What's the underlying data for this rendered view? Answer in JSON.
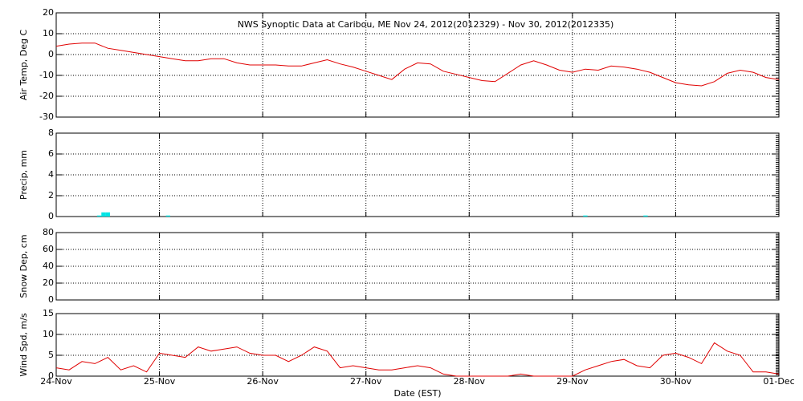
{
  "chart_data": [
    {
      "type": "line",
      "title": "NWS Synoptic Data at Caribou, ME   Nov 24, 2012(2012329) - Nov 30, 2012(2012335)",
      "ylabel": "Air Temp, Deg C",
      "ylim": [
        -30,
        20
      ],
      "yticks": [
        -30,
        -20,
        -10,
        0,
        10,
        20
      ],
      "grid": true,
      "color": "#e00000",
      "x": [
        0,
        3,
        6,
        9,
        12,
        15,
        18,
        21,
        24,
        27,
        30,
        33,
        36,
        39,
        42,
        45,
        48,
        51,
        54,
        57,
        60,
        63,
        66,
        69,
        72,
        75,
        78,
        81,
        84,
        87,
        90,
        93,
        96,
        99,
        102,
        105,
        108,
        111,
        114,
        117,
        120,
        123,
        126,
        129,
        132,
        135,
        138,
        141,
        144,
        147,
        150,
        153,
        156,
        159,
        162,
        165,
        168
      ],
      "values": [
        4,
        5,
        5.5,
        5.5,
        3,
        2,
        1,
        0,
        -1,
        -2,
        -3,
        -3,
        -2,
        -2,
        -4,
        -5,
        -5,
        -5,
        -5.5,
        -5.5,
        -4,
        -2.5,
        -4.5,
        -6,
        -8,
        -10,
        -12,
        -7,
        -4,
        -4.5,
        -8,
        -9.5,
        -11,
        -12.5,
        -13,
        -9,
        -5,
        -3,
        -5,
        -7.5,
        -8.5,
        -7,
        -7.5,
        -5.5,
        -6,
        -7,
        -8.5,
        -11,
        -13.5,
        -14.5,
        -15,
        -13,
        -9,
        -7.5,
        -8.5,
        -11,
        -12
      ]
    },
    {
      "type": "bar",
      "ylabel": "Precip, mm",
      "ylim": [
        0,
        8
      ],
      "yticks": [
        0,
        2,
        4,
        6,
        8
      ],
      "grid": true,
      "color": "#00e5e5",
      "x": [
        10,
        11,
        12,
        26,
        123,
        137
      ],
      "values": [
        0.1,
        0.4,
        0.4,
        0.1,
        0.1,
        0.1
      ]
    },
    {
      "type": "line",
      "ylabel": "Snow Dep, cm",
      "ylim": [
        0,
        80
      ],
      "yticks": [
        0,
        20,
        40,
        60,
        80
      ],
      "grid": true,
      "x": [],
      "values": []
    },
    {
      "type": "line",
      "ylabel": "Wind Spd, m/s",
      "xlabel": "Date (EST)",
      "ylim": [
        0,
        15
      ],
      "yticks": [
        0,
        5,
        10,
        15
      ],
      "grid": true,
      "color": "#e00000",
      "xlim": [
        0,
        168
      ],
      "xticks": [
        {
          "value": 0,
          "label": "24-Nov"
        },
        {
          "value": 24,
          "label": "25-Nov"
        },
        {
          "value": 48,
          "label": "26-Nov"
        },
        {
          "value": 72,
          "label": "27-Nov"
        },
        {
          "value": 96,
          "label": "28-Nov"
        },
        {
          "value": 120,
          "label": "29-Nov"
        },
        {
          "value": 144,
          "label": "30-Nov"
        },
        {
          "value": 168,
          "label": "01-Dec"
        }
      ],
      "x": [
        0,
        3,
        6,
        9,
        12,
        15,
        18,
        21,
        24,
        27,
        30,
        33,
        36,
        39,
        42,
        45,
        48,
        51,
        54,
        57,
        60,
        63,
        66,
        69,
        72,
        75,
        78,
        81,
        84,
        87,
        90,
        93,
        96,
        99,
        102,
        105,
        108,
        111,
        114,
        117,
        120,
        123,
        126,
        129,
        132,
        135,
        138,
        141,
        144,
        147,
        150,
        153,
        156,
        159,
        162,
        165,
        168
      ],
      "values": [
        2,
        1.5,
        3.5,
        3,
        4.5,
        1.5,
        2.5,
        1,
        5.5,
        5,
        4.5,
        7,
        6,
        6.5,
        7,
        5.5,
        5,
        5,
        3.5,
        5,
        7,
        6,
        2,
        2.5,
        2,
        1.5,
        1.5,
        2,
        2.5,
        2,
        0.5,
        0,
        0,
        0,
        0,
        0,
        0.5,
        0,
        0,
        0,
        0,
        1.5,
        2.5,
        3.5,
        4,
        2.5,
        2,
        5,
        5.5,
        4.5,
        3,
        8,
        6,
        5,
        1,
        1,
        0.5
      ]
    }
  ]
}
